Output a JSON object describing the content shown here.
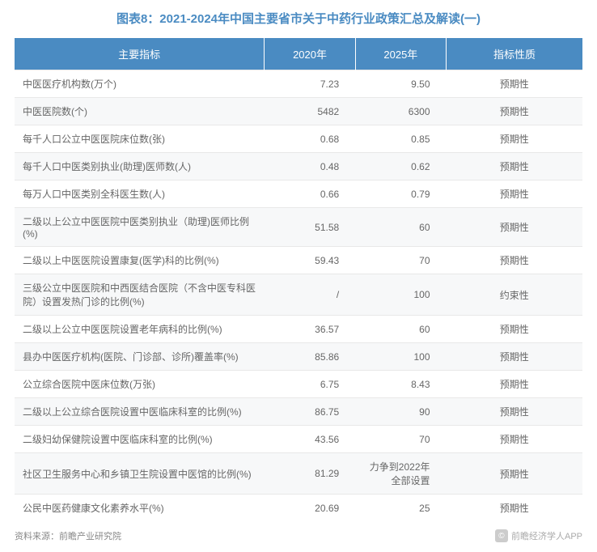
{
  "title": "图表8：2021-2024年中国主要省市关于中药行业政策汇总及解读(一)",
  "title_color": "#4a8bc2",
  "header_bg": "#4a8bc2",
  "header_fg": "#ffffff",
  "row_odd_bg": "#ffffff",
  "row_even_bg": "#f7f8f9",
  "border_color": "#e8e8e8",
  "text_color": "#666666",
  "font_size_title": 15,
  "font_size_header": 13,
  "font_size_body": 12,
  "font_size_footer": 11,
  "columns": [
    "主要指标",
    "2020年",
    "2025年",
    "指标性质"
  ],
  "column_widths_pct": [
    44,
    16,
    16,
    24
  ],
  "column_align": [
    "left",
    "right",
    "right",
    "center"
  ],
  "rows": [
    [
      "中医医疗机构数(万个)",
      "7.23",
      "9.50",
      "预期性"
    ],
    [
      "中医医院数(个)",
      "5482",
      "6300",
      "预期性"
    ],
    [
      "每千人口公立中医医院床位数(张)",
      "0.68",
      "0.85",
      "预期性"
    ],
    [
      "每千人口中医类别执业(助理)医师数(人)",
      "0.48",
      "0.62",
      "预期性"
    ],
    [
      "每万人口中医类别全科医生数(人)",
      "0.66",
      "0.79",
      "预期性"
    ],
    [
      "二级以上公立中医医院中医类别执业（助理)医师比例(%)",
      "51.58",
      "60",
      "预期性"
    ],
    [
      "二级以上中医医院设置康复(医学)科的比例(%)",
      "59.43",
      "70",
      "预期性"
    ],
    [
      "三级公立中医医院和中西医结合医院（不含中医专科医院）设置发热门诊的比例(%)",
      "/",
      "100",
      "约束性"
    ],
    [
      "二级以上公立中医医院设置老年病科的比例(%)",
      "36.57",
      "60",
      "预期性"
    ],
    [
      "县办中医医疗机构(医院、门诊部、诊所)覆盖率(%)",
      "85.86",
      "100",
      "预期性"
    ],
    [
      "公立综合医院中医床位数(万张)",
      "6.75",
      "8.43",
      "预期性"
    ],
    [
      "二级以上公立综合医院设置中医临床科室的比例(%)",
      "86.75",
      "90",
      "预期性"
    ],
    [
      "二级妇幼保健院设置中医临床科室的比例(%)",
      "43.56",
      "70",
      "预期性"
    ],
    [
      "社区卫生服务中心和乡镇卫生院设置中医馆的比例(%)",
      "81.29",
      "力争到2022年全部设置",
      "预期性"
    ],
    [
      "公民中医药健康文化素养水平(%)",
      "20.69",
      "25",
      "预期性"
    ]
  ],
  "source_label": "资料来源：前瞻产业研究院",
  "logo_text": "前瞻经济学人APP",
  "logo_symbol": "©"
}
